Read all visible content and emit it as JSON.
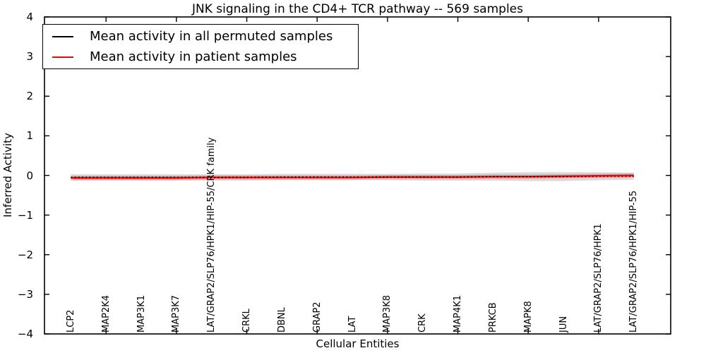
{
  "chart_data": {
    "type": "line",
    "title": "JNK signaling in the CD4+ TCR pathway -- 569 samples",
    "xlabel": "Cellular Entities",
    "ylabel": "Inferred Activity",
    "ylim": [
      -4,
      4
    ],
    "y_tick_values": [
      4,
      3,
      2,
      1,
      0,
      -1,
      -2,
      -3,
      -4
    ],
    "y_tick_labels": [
      "4",
      "3",
      "2",
      "1",
      "0",
      "−1",
      "−2",
      "−3",
      "−4"
    ],
    "grid": false,
    "legend_position": "upper left",
    "categories": [
      "LCP2",
      "MAP2K4",
      "MAP3K1",
      "MAP3K7",
      "LAT/GRAP2/SLP76/HPK1/HIP-55/CRK family",
      "CRKL",
      "DBNL",
      "GRAP2",
      "LAT",
      "MAP3K8",
      "CRK",
      "MAP4K1",
      "PRKCB",
      "MAPK8",
      "JUN",
      "LAT/GRAP2/SLP76/HPK1",
      "LAT/GRAP2/SLP76/HPK1/HIP-55"
    ],
    "series": [
      {
        "name": "Mean activity in all permuted samples",
        "color": "#000000",
        "line_style": "dotted",
        "values": [
          -0.05,
          -0.05,
          -0.05,
          -0.05,
          -0.05,
          -0.05,
          -0.04,
          -0.04,
          -0.04,
          -0.04,
          -0.04,
          -0.04,
          -0.03,
          -0.03,
          -0.03,
          -0.02,
          -0.02
        ],
        "band_halfwidth": [
          0.08,
          0.08,
          0.08,
          0.08,
          0.08,
          0.08,
          0.08,
          0.08,
          0.08,
          0.08,
          0.09,
          0.09,
          0.1,
          0.11,
          0.11,
          0.1,
          0.09
        ],
        "band_color": "rgba(0,0,0,0.15)"
      },
      {
        "name": "Mean activity in patient samples",
        "color": "#ff0000",
        "line_style": "solid",
        "values": [
          -0.06,
          -0.06,
          -0.06,
          -0.06,
          -0.05,
          -0.05,
          -0.05,
          -0.05,
          -0.05,
          -0.04,
          -0.04,
          -0.04,
          -0.03,
          -0.03,
          -0.02,
          -0.01,
          0.0
        ],
        "band_halfwidth": [
          0.05,
          0.05,
          0.05,
          0.05,
          0.05,
          0.05,
          0.05,
          0.05,
          0.05,
          0.05,
          0.05,
          0.05,
          0.05,
          0.05,
          0.05,
          0.05,
          0.05
        ],
        "band_color": "rgba(255,0,0,0.28)"
      }
    ]
  }
}
